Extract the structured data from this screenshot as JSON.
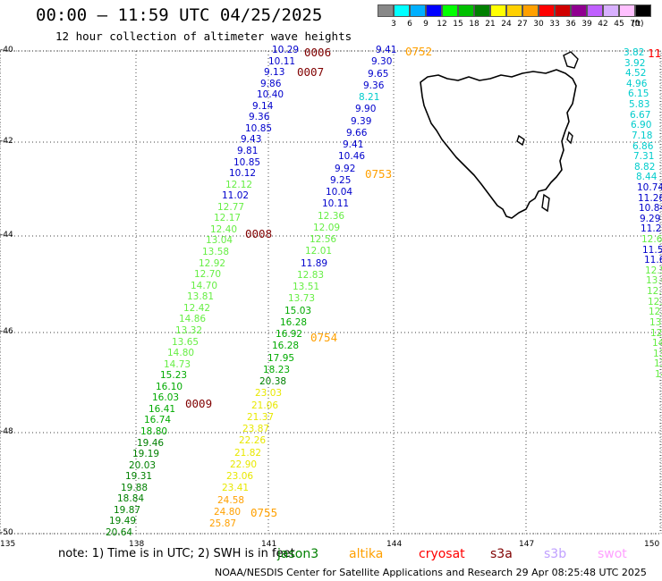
{
  "header": {
    "title": "00:00 – 11:59 UTC 04/25/2025",
    "subtitle": "12 hour collection of altimeter wave heights"
  },
  "legend": {
    "bins": [
      {
        "label": "3",
        "color": "#888888"
      },
      {
        "label": "6",
        "color": "#00ffff"
      },
      {
        "label": "9",
        "color": "#00b0ff"
      },
      {
        "label": "12",
        "color": "#0000ff"
      },
      {
        "label": "15",
        "color": "#00ff00"
      },
      {
        "label": "18",
        "color": "#00c000"
      },
      {
        "label": "21",
        "color": "#008000"
      },
      {
        "label": "24",
        "color": "#ffff00"
      },
      {
        "label": "27",
        "color": "#ffd000"
      },
      {
        "label": "30",
        "color": "#ffa000"
      },
      {
        "label": "33",
        "color": "#ff0000"
      },
      {
        "label": "36",
        "color": "#d00000"
      },
      {
        "label": "39",
        "color": "#900090"
      },
      {
        "label": "42",
        "color": "#c060ff"
      },
      {
        "label": "45",
        "color": "#d8b0ff"
      },
      {
        "label": "70",
        "color": "#ffc0ff"
      },
      {
        "label": "",
        "color": "#000000"
      }
    ],
    "unit": "(ft)"
  },
  "axes": {
    "lat_ticks": [
      "-40",
      "-42",
      "-44",
      "-46",
      "-48",
      "-50"
    ],
    "lon_ticks": [
      "135",
      "138",
      "141",
      "144",
      "147",
      "150"
    ]
  },
  "colors": {
    "blue": "#0000cc",
    "cyan": "#00cccc",
    "lightgreen": "#66ee44",
    "green": "#00aa00",
    "darkgreen": "#008000",
    "yellow": "#e8e800",
    "orange": "#ffa000",
    "maroon": "#800000"
  },
  "track_a": [
    {
      "v": "10.29",
      "c": "blue"
    },
    {
      "v": "10.11",
      "c": "blue"
    },
    {
      "v": "9.13",
      "c": "blue"
    },
    {
      "v": "9.86",
      "c": "blue"
    },
    {
      "v": "10.40",
      "c": "blue"
    },
    {
      "v": "9.14",
      "c": "blue"
    },
    {
      "v": "9.36",
      "c": "blue"
    },
    {
      "v": "10.85",
      "c": "blue"
    },
    {
      "v": "9.43",
      "c": "blue"
    },
    {
      "v": "9.81",
      "c": "blue"
    },
    {
      "v": "10.85",
      "c": "blue"
    },
    {
      "v": "10.12",
      "c": "blue"
    },
    {
      "v": "12.12",
      "c": "lightgreen"
    },
    {
      "v": "11.02",
      "c": "blue"
    },
    {
      "v": "12.77",
      "c": "lightgreen"
    },
    {
      "v": "12.17",
      "c": "lightgreen"
    },
    {
      "v": "12.40",
      "c": "lightgreen"
    },
    {
      "v": "13.04",
      "c": "lightgreen"
    },
    {
      "v": "13.58",
      "c": "lightgreen"
    },
    {
      "v": "12.92",
      "c": "lightgreen"
    },
    {
      "v": "12.70",
      "c": "lightgreen"
    },
    {
      "v": "14.70",
      "c": "lightgreen"
    },
    {
      "v": "13.81",
      "c": "lightgreen"
    },
    {
      "v": "12.42",
      "c": "lightgreen"
    },
    {
      "v": "14.86",
      "c": "lightgreen"
    },
    {
      "v": "13.32",
      "c": "lightgreen"
    },
    {
      "v": "13.65",
      "c": "lightgreen"
    },
    {
      "v": "14.80",
      "c": "lightgreen"
    },
    {
      "v": "14.73",
      "c": "lightgreen"
    },
    {
      "v": "15.23",
      "c": "green"
    },
    {
      "v": "16.10",
      "c": "green"
    },
    {
      "v": "16.03",
      "c": "green"
    },
    {
      "v": "16.41",
      "c": "green"
    },
    {
      "v": "16.74",
      "c": "green"
    },
    {
      "v": "18.80",
      "c": "green"
    },
    {
      "v": "19.46",
      "c": "darkgreen"
    },
    {
      "v": "19.19",
      "c": "darkgreen"
    },
    {
      "v": "20.03",
      "c": "darkgreen"
    },
    {
      "v": "19.31",
      "c": "darkgreen"
    },
    {
      "v": "19.88",
      "c": "darkgreen"
    },
    {
      "v": "18.84",
      "c": "darkgreen"
    },
    {
      "v": "19.87",
      "c": "darkgreen"
    },
    {
      "v": "19.49",
      "c": "darkgreen"
    },
    {
      "v": "20.64",
      "c": "darkgreen"
    }
  ],
  "track_b": [
    {
      "v": "9.41",
      "c": "blue"
    },
    {
      "v": "9.30",
      "c": "blue"
    },
    {
      "v": "9.65",
      "c": "blue"
    },
    {
      "v": "9.36",
      "c": "blue"
    },
    {
      "v": "8.21",
      "c": "cyan"
    },
    {
      "v": "9.90",
      "c": "blue"
    },
    {
      "v": "9.39",
      "c": "blue"
    },
    {
      "v": "9.66",
      "c": "blue"
    },
    {
      "v": "9.41",
      "c": "blue"
    },
    {
      "v": "10.46",
      "c": "blue"
    },
    {
      "v": "9.92",
      "c": "blue"
    },
    {
      "v": "9.25",
      "c": "blue"
    },
    {
      "v": "10.04",
      "c": "blue"
    },
    {
      "v": "10.11",
      "c": "blue"
    },
    {
      "v": "12.36",
      "c": "lightgreen"
    },
    {
      "v": "12.09",
      "c": "lightgreen"
    },
    {
      "v": "12.56",
      "c": "lightgreen"
    },
    {
      "v": "12.01",
      "c": "lightgreen"
    },
    {
      "v": "11.89",
      "c": "blue"
    },
    {
      "v": "12.83",
      "c": "lightgreen"
    },
    {
      "v": "13.51",
      "c": "lightgreen"
    },
    {
      "v": "13.73",
      "c": "lightgreen"
    },
    {
      "v": "15.03",
      "c": "green"
    },
    {
      "v": "16.28",
      "c": "green"
    },
    {
      "v": "16.92",
      "c": "green"
    },
    {
      "v": "16.28",
      "c": "green"
    },
    {
      "v": "17.95",
      "c": "green"
    },
    {
      "v": "18.23",
      "c": "green"
    },
    {
      "v": "20.38",
      "c": "darkgreen"
    },
    {
      "v": "23.03",
      "c": "yellow"
    },
    {
      "v": "21.06",
      "c": "yellow"
    },
    {
      "v": "21.37",
      "c": "yellow"
    },
    {
      "v": "23.87",
      "c": "yellow"
    },
    {
      "v": "22.26",
      "c": "yellow"
    },
    {
      "v": "21.82",
      "c": "yellow"
    },
    {
      "v": "22.90",
      "c": "yellow"
    },
    {
      "v": "23.06",
      "c": "yellow"
    },
    {
      "v": "23.41",
      "c": "yellow"
    },
    {
      "v": "24.58",
      "c": "orange"
    },
    {
      "v": "24.80",
      "c": "orange"
    },
    {
      "v": "25.87",
      "c": "orange"
    }
  ],
  "track_c": [
    {
      "v": "3.82",
      "c": "cyan"
    },
    {
      "v": "3.92",
      "c": "cyan"
    },
    {
      "v": "4.52",
      "c": "cyan"
    },
    {
      "v": "4.96",
      "c": "cyan"
    },
    {
      "v": "6.15",
      "c": "cyan"
    },
    {
      "v": "5.83",
      "c": "cyan"
    },
    {
      "v": "6.67",
      "c": "cyan"
    },
    {
      "v": "6.90",
      "c": "cyan"
    },
    {
      "v": "7.18",
      "c": "cyan"
    },
    {
      "v": "6.86",
      "c": "cyan"
    },
    {
      "v": "7.31",
      "c": "cyan"
    },
    {
      "v": "8.82",
      "c": "cyan"
    },
    {
      "v": "8.44",
      "c": "cyan"
    },
    {
      "v": "10.74",
      "c": "blue"
    },
    {
      "v": "11.26",
      "c": "blue"
    },
    {
      "v": "10.84",
      "c": "blue"
    },
    {
      "v": "9.29",
      "c": "blue"
    },
    {
      "v": "11.23",
      "c": "blue"
    },
    {
      "v": "12.62",
      "c": "lightgreen"
    },
    {
      "v": "11.55",
      "c": "blue"
    },
    {
      "v": "11.67",
      "c": "blue"
    },
    {
      "v": "12.5",
      "c": "lightgreen"
    },
    {
      "v": "13.6",
      "c": "lightgreen"
    },
    {
      "v": "12.8",
      "c": "lightgreen"
    },
    {
      "v": "12.9",
      "c": "lightgreen"
    },
    {
      "v": "12.",
      "c": "lightgreen"
    },
    {
      "v": "13.",
      "c": "lightgreen"
    },
    {
      "v": "12",
      "c": "lightgreen"
    },
    {
      "v": "14",
      "c": "lightgreen"
    },
    {
      "v": "13",
      "c": "lightgreen"
    },
    {
      "v": "13",
      "c": "lightgreen"
    },
    {
      "v": "14",
      "c": "lightgreen"
    }
  ],
  "time_labels": [
    {
      "t": "0006",
      "c": "maroon"
    },
    {
      "t": "0007",
      "c": "maroon"
    },
    {
      "t": "0008",
      "c": "maroon"
    },
    {
      "t": "0009",
      "c": "maroon"
    },
    {
      "t": "0752",
      "c": "orange"
    },
    {
      "t": "0753",
      "c": "orange"
    },
    {
      "t": "0754",
      "c": "orange"
    },
    {
      "t": "0755",
      "c": "orange"
    },
    {
      "t": "11",
      "c": "red"
    }
  ],
  "footer": {
    "note": "note:  1) Time is in UTC; 2) SWH is in feet",
    "satellites": [
      {
        "name": "jason3",
        "color": "#008000"
      },
      {
        "name": "altika",
        "color": "#ffa000"
      },
      {
        "name": "cryosat",
        "color": "#ff0000"
      },
      {
        "name": "s3a",
        "color": "#800000"
      },
      {
        "name": "s3b",
        "color": "#c0a0ff"
      },
      {
        "name": "swot",
        "color": "#ffa0ff"
      }
    ],
    "credit": "NOAA/NESDIS Center for Satellite Applications and Research    29 Apr 08:25:48 UTC 2025"
  }
}
